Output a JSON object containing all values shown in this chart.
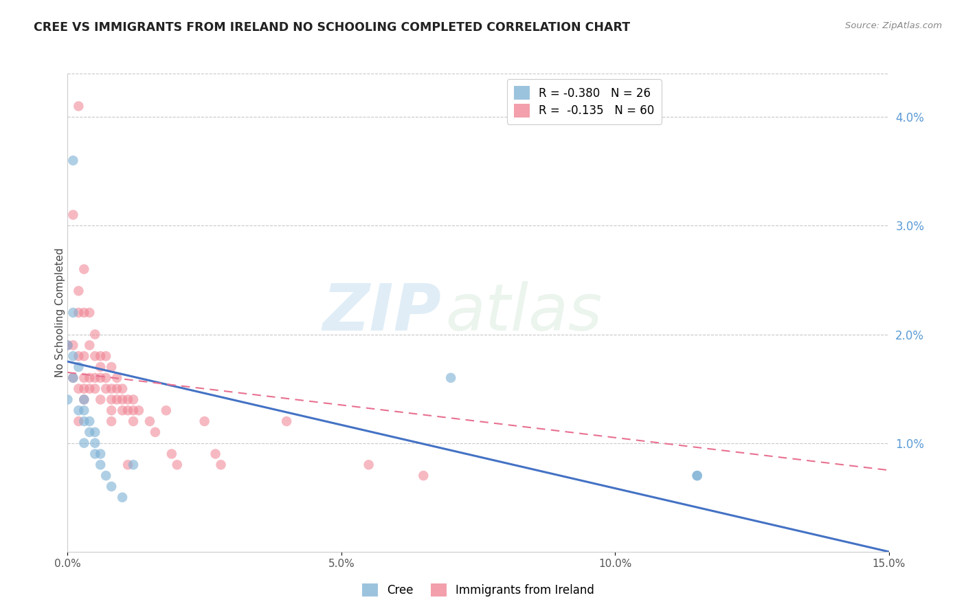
{
  "title": "CREE VS IMMIGRANTS FROM IRELAND NO SCHOOLING COMPLETED CORRELATION CHART",
  "source": "Source: ZipAtlas.com",
  "ylabel": "No Schooling Completed",
  "xlim": [
    0.0,
    0.15
  ],
  "ylim": [
    0.0,
    0.044
  ],
  "legend": {
    "cree": {
      "R": "-0.380",
      "N": "26",
      "color": "#a8c4e0"
    },
    "ireland": {
      "R": "-0.135",
      "N": "60",
      "color": "#f4a0b0"
    }
  },
  "cree_points_x": [
    0.001,
    0.001,
    0.0,
    0.0,
    0.001,
    0.002,
    0.001,
    0.003,
    0.003,
    0.002,
    0.003,
    0.004,
    0.004,
    0.005,
    0.003,
    0.005,
    0.005,
    0.006,
    0.006,
    0.007,
    0.008,
    0.01,
    0.07,
    0.115,
    0.115,
    0.012
  ],
  "cree_points_y": [
    0.036,
    0.022,
    0.019,
    0.014,
    0.018,
    0.017,
    0.016,
    0.014,
    0.013,
    0.013,
    0.012,
    0.012,
    0.011,
    0.011,
    0.01,
    0.01,
    0.009,
    0.009,
    0.008,
    0.007,
    0.006,
    0.005,
    0.016,
    0.007,
    0.007,
    0.008
  ],
  "ireland_points_x": [
    0.002,
    0.0,
    0.001,
    0.001,
    0.001,
    0.002,
    0.002,
    0.002,
    0.002,
    0.002,
    0.003,
    0.003,
    0.003,
    0.003,
    0.003,
    0.003,
    0.004,
    0.004,
    0.004,
    0.004,
    0.005,
    0.005,
    0.005,
    0.005,
    0.006,
    0.006,
    0.006,
    0.006,
    0.007,
    0.007,
    0.007,
    0.008,
    0.008,
    0.008,
    0.008,
    0.008,
    0.009,
    0.009,
    0.009,
    0.01,
    0.01,
    0.01,
    0.011,
    0.011,
    0.011,
    0.012,
    0.012,
    0.012,
    0.013,
    0.015,
    0.016,
    0.018,
    0.019,
    0.02,
    0.025,
    0.027,
    0.028,
    0.04,
    0.055,
    0.065
  ],
  "ireland_points_y": [
    0.041,
    0.019,
    0.031,
    0.019,
    0.016,
    0.024,
    0.022,
    0.018,
    0.015,
    0.012,
    0.026,
    0.022,
    0.018,
    0.016,
    0.015,
    0.014,
    0.022,
    0.019,
    0.016,
    0.015,
    0.02,
    0.018,
    0.016,
    0.015,
    0.018,
    0.017,
    0.016,
    0.014,
    0.018,
    0.016,
    0.015,
    0.017,
    0.015,
    0.014,
    0.013,
    0.012,
    0.016,
    0.015,
    0.014,
    0.015,
    0.014,
    0.013,
    0.014,
    0.013,
    0.008,
    0.014,
    0.013,
    0.012,
    0.013,
    0.012,
    0.011,
    0.013,
    0.009,
    0.008,
    0.012,
    0.009,
    0.008,
    0.012,
    0.008,
    0.007
  ],
  "cree_line_x": [
    0.0,
    0.15
  ],
  "cree_line_y": [
    0.0175,
    0.0
  ],
  "ireland_line_x": [
    0.0,
    0.15
  ],
  "ireland_line_y": [
    0.0165,
    0.0075
  ],
  "watermark_zip": "ZIP",
  "watermark_atlas": "atlas",
  "bg_color": "#ffffff",
  "cree_dot_color": "#7bafd4",
  "ireland_dot_color": "#f08090",
  "cree_line_color": "#4472c4",
  "ireland_line_color": "#e87090",
  "grid_color": "#c8c8c8",
  "x_ticks": [
    0.0,
    0.05,
    0.1,
    0.15
  ],
  "x_tick_labels": [
    "0.0%",
    "5.0%",
    "10.0%",
    "15.0%"
  ],
  "y_ticks": [
    0.01,
    0.02,
    0.03,
    0.04
  ],
  "y_tick_labels": [
    "1.0%",
    "2.0%",
    "3.0%",
    "4.0%"
  ]
}
